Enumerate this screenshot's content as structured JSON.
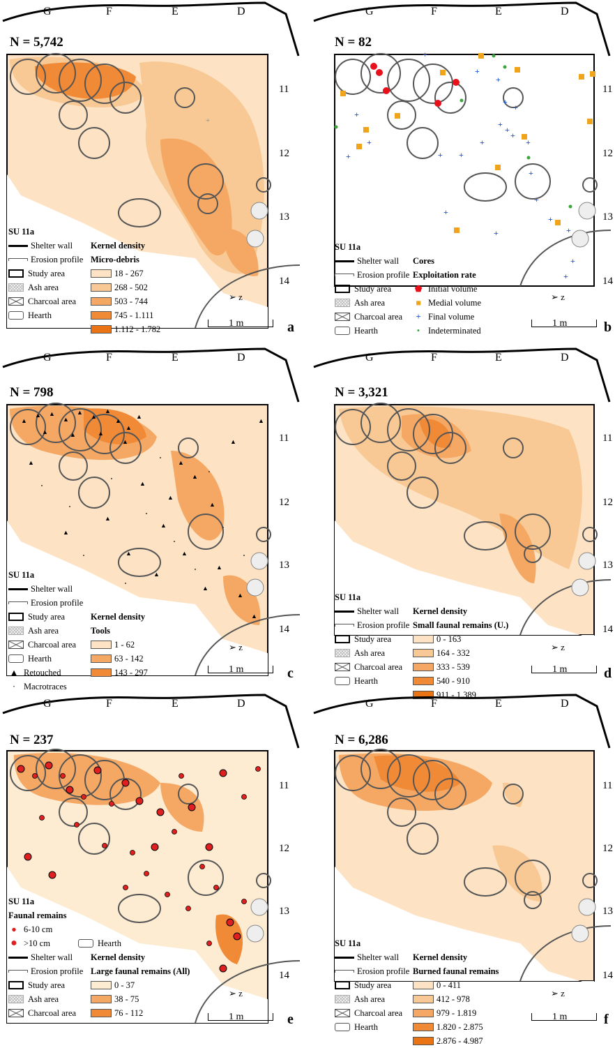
{
  "colors": {
    "density": [
      "#fde3c4",
      "#f9c995",
      "#f5a864",
      "#f08a36",
      "#ea7414"
    ],
    "map_bg": "#fdebd2",
    "hearth": "#555555",
    "red_dot": "#e02020",
    "core_initial": "#e8101a",
    "core_medial": "#f0a41c",
    "core_final": "#1f5bd6",
    "core_indet": "#3aa53a"
  },
  "columns": [
    "G",
    "F",
    "E",
    "D"
  ],
  "rows": [
    "11",
    "12",
    "13",
    "14"
  ],
  "scale_label": "1 m",
  "north_icon": "north-arrow-icon",
  "panels": [
    {
      "letter": "a",
      "count": "N = 5,742",
      "unit": "SU 11a",
      "legend_left": [
        "Shelter wall",
        "Erosion profile",
        "Study area",
        "Ash area",
        "Charcoal area",
        "Hearth"
      ],
      "legend_title": "Kernel density",
      "legend_subtitle": "Micro-debris",
      "classes": [
        "18 - 267",
        "268 - 502",
        "503 - 744",
        "745 - 1.111",
        "1.112 - 1.782"
      ]
    },
    {
      "letter": "b",
      "count": "N = 82",
      "unit": "SU 11a",
      "legend_left": [
        "Shelter wall",
        "Erosion profile",
        "Study area",
        "Ash area",
        "Charcoal area",
        "Hearth"
      ],
      "legend_title": "Cores",
      "legend_subtitle": "Exploitation rate",
      "classes": [
        "Initial volume",
        "Medial volume",
        "Final volume",
        "Indeterminated"
      ]
    },
    {
      "letter": "c",
      "count": "N = 798",
      "unit": "SU 11a",
      "legend_left": [
        "Shelter wall",
        "Erosion profile",
        "Study area",
        "Ash area",
        "Charcoal area",
        "Hearth",
        "Retouched",
        "Macrotraces"
      ],
      "legend_title": "Kernel density",
      "legend_subtitle": "Tools",
      "classes": [
        "1 - 62",
        "63 - 142",
        "143 - 297"
      ]
    },
    {
      "letter": "d",
      "count": "N = 3,321",
      "unit": "SU 11a",
      "legend_left": [
        "Shelter wall",
        "Erosion profile",
        "Study area",
        "Ash area",
        "Charcoal area",
        "Hearth"
      ],
      "legend_title": "Kernel density",
      "legend_subtitle": "Small faunal remains (U.)",
      "classes": [
        "0 - 163",
        "164 - 332",
        "333 - 539",
        "540 - 910",
        "911 - 1.389"
      ]
    },
    {
      "letter": "e",
      "count": "N = 237",
      "unit": "SU 11a",
      "faunal_title": "Faunal remains",
      "faunal_sizes": [
        "6-10 cm",
        ">10 cm"
      ],
      "legend_left": [
        "Shelter wall",
        "Erosion profile",
        "Study area",
        "Ash area",
        "Charcoal area"
      ],
      "hearth_label": "Hearth",
      "legend_title": "Kernel density",
      "legend_subtitle": "Large faunal remains (All)",
      "classes": [
        "0 - 37",
        "38 - 75",
        "76 - 112"
      ]
    },
    {
      "letter": "f",
      "count": "N = 6,286",
      "unit": "SU 11a",
      "legend_left": [
        "Shelter wall",
        "Erosion profile",
        "Study area",
        "Ash area",
        "Charcoal area",
        "Hearth"
      ],
      "legend_title": "Kernel density",
      "legend_subtitle": "Burned faunal remains",
      "classes": [
        "0 - 411",
        "412 - 978",
        "979 - 1.819",
        "1.820 - 2.875",
        "2.876 - 4.987"
      ]
    }
  ]
}
